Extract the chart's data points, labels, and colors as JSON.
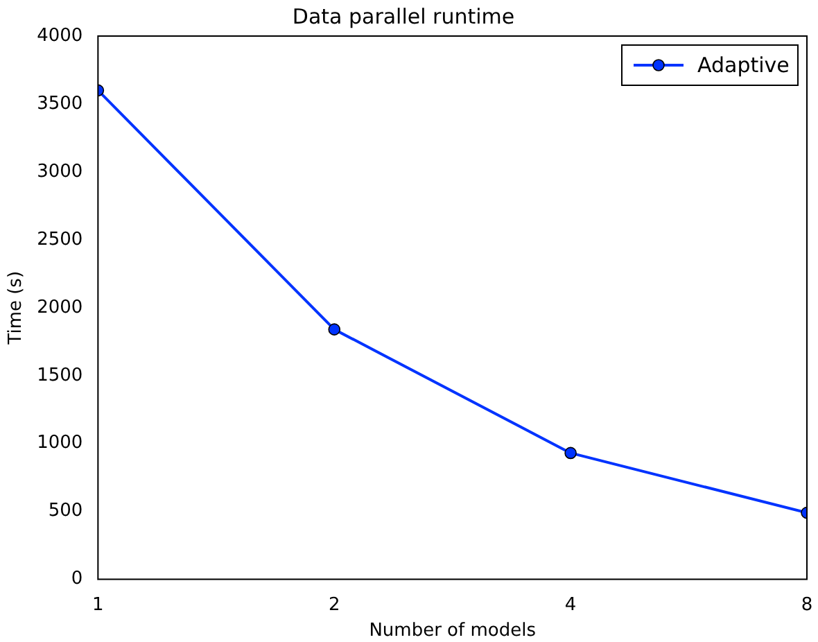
{
  "chart_data": {
    "type": "line",
    "title": "Data parallel runtime",
    "xlabel": "Number of models",
    "ylabel": "Time (s)",
    "x": [
      1,
      2,
      4,
      8
    ],
    "series": [
      {
        "name": "Adaptive",
        "color": "#0033ff",
        "values": [
          3600,
          1840,
          930,
          490
        ]
      }
    ],
    "log": "x",
    "xlim": [
      1,
      8
    ],
    "xticks": [
      1,
      2,
      4,
      8
    ],
    "ylim": [
      0,
      4000
    ],
    "yticks": [
      0,
      500,
      1000,
      1500,
      2000,
      2500,
      3000,
      3500,
      4000
    ],
    "grid": false,
    "legend": "top right",
    "marker": "circle",
    "line_style": "solid"
  }
}
